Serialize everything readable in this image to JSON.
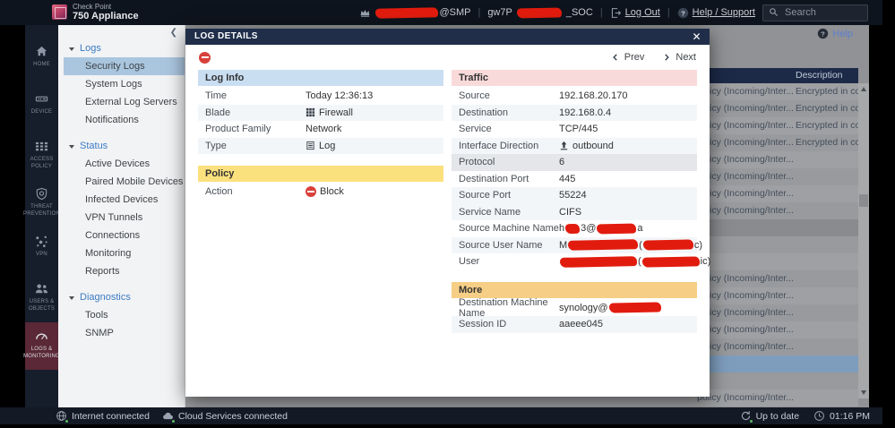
{
  "topbar": {
    "brand_line1": "Check Point",
    "brand_line2": "750 Appliance",
    "account_segments": [
      {
        "redact": 70
      },
      {
        "text": "@SMP"
      }
    ],
    "gateway_segments": [
      {
        "text": "gw7P"
      },
      {
        "redact": 50
      },
      {
        "text": "_SOC"
      }
    ],
    "logout_label": "Log Out",
    "help_label": "Help / Support",
    "search_placeholder": "Search"
  },
  "nav": {
    "items": [
      {
        "label": "HOME",
        "icon": "home",
        "active": false
      },
      {
        "label": "DEVICE",
        "icon": "device",
        "active": false
      },
      {
        "label": "ACCESS POLICY",
        "icon": "access-policy",
        "active": false
      },
      {
        "label": "THREAT PREVENTION",
        "icon": "threat-prevention",
        "active": false
      },
      {
        "label": "VPN",
        "icon": "vpn",
        "active": false
      },
      {
        "label": "USERS & OBJECTS",
        "icon": "users-objects",
        "active": false
      },
      {
        "label": "LOGS & MONITORING",
        "icon": "logs-monitoring",
        "active": true
      }
    ]
  },
  "sidebar": {
    "groups": [
      {
        "label": "Logs",
        "items": [
          "Security Logs",
          "System Logs",
          "External Log Servers",
          "Notifications"
        ],
        "selected": "Security Logs"
      },
      {
        "label": "Status",
        "items": [
          "Active Devices",
          "Paired Mobile Devices",
          "Infected Devices",
          "VPN Tunnels",
          "Connections",
          "Monitoring",
          "Reports"
        ],
        "selected": ""
      },
      {
        "label": "Diagnostics",
        "items": [
          "Tools",
          "SNMP"
        ],
        "selected": ""
      }
    ]
  },
  "content": {
    "help_label": "Help",
    "table": {
      "description_header": "Description",
      "policy_text": "policy (Incoming/Inter...",
      "encrypted_text": "Encrypted in co...",
      "rows": [
        {
          "p": true,
          "d": true
        },
        {
          "p": true,
          "d": true
        },
        {
          "p": true,
          "d": true
        },
        {
          "p": true,
          "d": true
        },
        {
          "p": true
        },
        {
          "p": true
        },
        {
          "p": true
        },
        {
          "p": true
        },
        {
          "v": "gray"
        },
        {},
        {},
        {
          "p": true
        },
        {
          "p": true
        },
        {
          "p": true
        },
        {
          "p": true
        },
        {
          "p": true
        },
        {
          "v": "selected"
        },
        {},
        {
          "p": true
        }
      ]
    }
  },
  "modal": {
    "title": "LOG DETAILS",
    "prev_label": "Prev",
    "next_label": "Next",
    "sections": [
      {
        "id": "log-info",
        "title": "Log Info",
        "color": "blue",
        "column": "left",
        "rows": [
          {
            "label": "Time",
            "value": "Today 12:36:13"
          },
          {
            "label": "Blade",
            "value": "Firewall",
            "icon": "grid",
            "shade": true
          },
          {
            "label": "Product Family",
            "value": "Network"
          },
          {
            "label": "Type",
            "value": "Log",
            "icon": "log-doc",
            "shade": true
          }
        ]
      },
      {
        "id": "policy",
        "title": "Policy",
        "color": "yellow",
        "column": "left",
        "rows": [
          {
            "label": "Action",
            "value": "Block",
            "icon": "block"
          }
        ]
      },
      {
        "id": "traffic",
        "title": "Traffic",
        "color": "pink",
        "column": "right",
        "rows": [
          {
            "label": "Source",
            "value": "192.168.20.170"
          },
          {
            "label": "Destination",
            "value": "192.168.0.4",
            "shade": true
          },
          {
            "label": "Service",
            "value": "TCP/445"
          },
          {
            "label": "Interface Direction",
            "value": "outbound",
            "icon": "outbound",
            "shade": true
          },
          {
            "label": "Protocol",
            "value": "6",
            "highlight": true
          },
          {
            "label": "Destination Port",
            "value": "445"
          },
          {
            "label": "Source Port",
            "value": "55224",
            "shade": true
          },
          {
            "label": "Service Name",
            "value": "CIFS",
            "shade": true
          },
          {
            "label": "Source Machine Name",
            "segments": [
              {
                "text": "h"
              },
              {
                "redact": 16
              },
              {
                "text": "3@"
              },
              {
                "redact": 44
              },
              {
                "text": "a"
              }
            ]
          },
          {
            "label": "Source User Name",
            "segments": [
              {
                "text": "M"
              },
              {
                "redact": 78
              },
              {
                "text": "("
              },
              {
                "redact": 56
              },
              {
                "text": "c)"
              }
            ],
            "shade": true
          },
          {
            "label": "User",
            "segments": [
              {
                "redact": 86
              },
              {
                "text": "("
              },
              {
                "redact": 64
              },
              {
                "text": "ic)"
              }
            ]
          }
        ]
      },
      {
        "id": "more",
        "title": "More",
        "color": "orange",
        "column": "right",
        "rows": [
          {
            "label": "Destination Machine Name",
            "segments": [
              {
                "text": "synology@"
              },
              {
                "redact": 58
              }
            ]
          },
          {
            "label": "Session ID",
            "value": "aaeee045",
            "shade": true
          }
        ]
      }
    ]
  },
  "statusbar": {
    "internet_label": "Internet connected",
    "cloud_label": "Cloud Services connected",
    "uptodate_label": "Up to date",
    "time": "01:16 PM"
  },
  "colors": {
    "redaction_red": "#e11c0e",
    "block_red": "#d8413c",
    "nav_active_maroon": "#5a2836",
    "section_blue": "#cadef2",
    "section_yellow": "#fbe17e",
    "section_pink": "#f9dada",
    "section_orange": "#f6ce85",
    "selected_row_blue": "#7e9dbd",
    "status_green": "#5cb85c"
  }
}
